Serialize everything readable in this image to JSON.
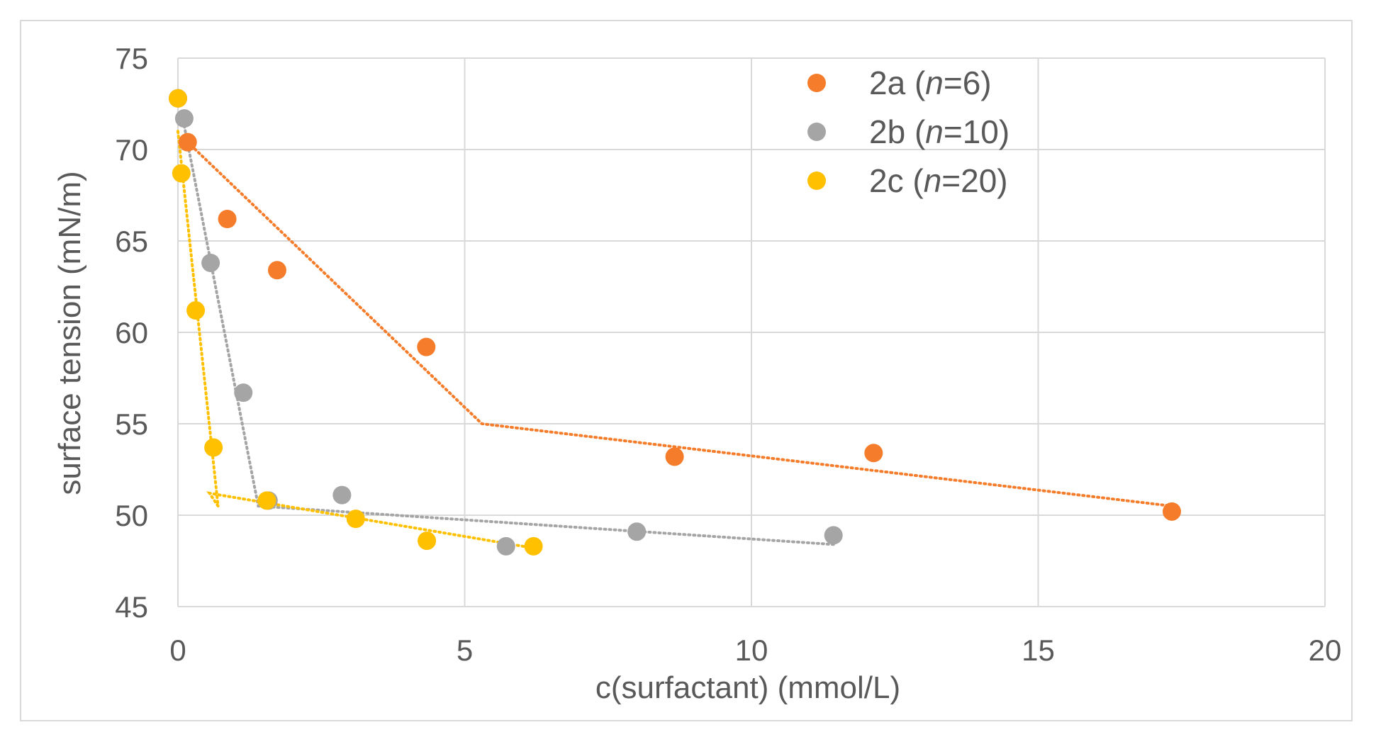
{
  "chart_data": {
    "type": "scatter",
    "xlabel": "c(surfactant) (mmol/L)",
    "ylabel": "surface tension (mN/m)",
    "xlim": [
      0,
      20
    ],
    "ylim": [
      45,
      75
    ],
    "x_ticks": [
      0,
      5,
      10,
      15,
      20
    ],
    "y_ticks": [
      45,
      50,
      55,
      60,
      65,
      70,
      75
    ],
    "grid": true,
    "legend_position": "top-right",
    "series": [
      {
        "name": "2a (n=6)",
        "name_prefix": "2a (",
        "name_italic": "n",
        "name_suffix": "=6)",
        "color": "#f47c2a",
        "points": [
          [
            0,
            72.8
          ],
          [
            0.17,
            70.4
          ],
          [
            0.86,
            66.2
          ],
          [
            1.73,
            63.4
          ],
          [
            4.33,
            59.2
          ],
          [
            8.66,
            53.2
          ],
          [
            12.13,
            53.4
          ],
          [
            17.33,
            50.2
          ]
        ],
        "trendline": [
          [
            0.17,
            70.4
          ],
          [
            5.3,
            55.0
          ],
          [
            17.33,
            50.5
          ]
        ]
      },
      {
        "name": "2b (n=10)",
        "name_prefix": "2b (",
        "name_italic": "n",
        "name_suffix": "=10)",
        "color": "#a5a5a5",
        "points": [
          [
            0,
            72.8
          ],
          [
            0.11,
            71.7
          ],
          [
            0.57,
            63.8
          ],
          [
            1.14,
            56.7
          ],
          [
            1.58,
            50.8
          ],
          [
            2.86,
            51.1
          ],
          [
            5.72,
            48.3
          ],
          [
            8.0,
            49.1
          ],
          [
            11.43,
            48.9
          ]
        ],
        "trendline": [
          [
            0.11,
            71.3
          ],
          [
            1.4,
            50.5
          ],
          [
            11.43,
            48.4
          ]
        ]
      },
      {
        "name": "2c (n=20)",
        "name_prefix": "2c (",
        "name_italic": "n",
        "name_suffix": "=20)",
        "color": "#ffc000",
        "points": [
          [
            0,
            72.8
          ],
          [
            0.06,
            68.7
          ],
          [
            0.31,
            61.2
          ],
          [
            0.62,
            53.7
          ],
          [
            1.55,
            50.8
          ],
          [
            3.1,
            49.8
          ],
          [
            4.34,
            48.6
          ],
          [
            6.2,
            48.3
          ]
        ],
        "trendline": [
          [
            0.0,
            71.0
          ],
          [
            0.7,
            50.5
          ],
          [
            0.55,
            51.2
          ],
          [
            6.2,
            48.2
          ]
        ]
      }
    ]
  }
}
